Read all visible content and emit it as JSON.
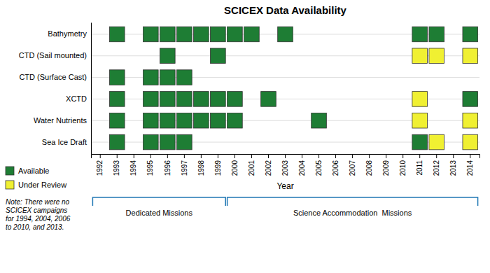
{
  "chart_data": {
    "type": "heatmap",
    "title": "SCICEX Data Availability",
    "xlabel": "Year",
    "categories": [
      1992,
      1993,
      1994,
      1995,
      1996,
      1997,
      1998,
      1999,
      2000,
      2001,
      2002,
      2003,
      2004,
      2005,
      2006,
      2007,
      2008,
      2009,
      2010,
      2011,
      2012,
      2013,
      2014
    ],
    "rows": [
      "Bathymetry",
      "CTD (Sail mounted)",
      "CTD (Surface Cast)",
      "XCTD",
      "Water Nutrients",
      "Sea Ice Draft"
    ],
    "series": [
      {
        "name": "Available",
        "color": "#1e7d34"
      },
      {
        "name": "Under Review",
        "color": "#f0f032"
      }
    ],
    "cells": [
      [
        null,
        "Available",
        null,
        "Available",
        "Available",
        "Available",
        "Available",
        "Available",
        "Available",
        "Available",
        null,
        "Available",
        null,
        null,
        null,
        null,
        null,
        null,
        null,
        "Available",
        "Available",
        null,
        "Available"
      ],
      [
        null,
        null,
        null,
        null,
        "Available",
        null,
        null,
        "Available",
        null,
        null,
        null,
        null,
        null,
        null,
        null,
        null,
        null,
        null,
        null,
        "Under Review",
        "Under Review",
        null,
        "Under Review"
      ],
      [
        null,
        "Available",
        null,
        "Available",
        "Available",
        "Available",
        null,
        null,
        null,
        null,
        null,
        null,
        null,
        null,
        null,
        null,
        null,
        null,
        null,
        null,
        null,
        null,
        null
      ],
      [
        null,
        "Available",
        null,
        "Available",
        "Available",
        "Available",
        "Available",
        "Available",
        "Available",
        null,
        "Available",
        null,
        null,
        null,
        null,
        null,
        null,
        null,
        null,
        "Under Review",
        null,
        null,
        "Available"
      ],
      [
        null,
        "Available",
        null,
        "Available",
        "Available",
        "Available",
        "Available",
        "Available",
        "Available",
        null,
        null,
        null,
        null,
        "Available",
        null,
        null,
        null,
        null,
        null,
        "Under Review",
        null,
        null,
        "Under Review"
      ],
      [
        null,
        "Available",
        null,
        "Available",
        "Available",
        "Available",
        null,
        null,
        null,
        null,
        null,
        null,
        null,
        null,
        null,
        null,
        null,
        null,
        null,
        "Available",
        "Under Review",
        null,
        "Under Review"
      ]
    ],
    "grid": true,
    "legend": "bottom-left",
    "note": "Note: There were no\nSCICEX campaigns\nfor 1994, 2004, 2006\nto 2010, and 2013.",
    "annotations": [
      {
        "text": "Dedicated Missions",
        "from": 1992,
        "to": 1999
      },
      {
        "text": "Science Accommodation  Missions",
        "from": 2000,
        "to": 2014
      }
    ]
  }
}
